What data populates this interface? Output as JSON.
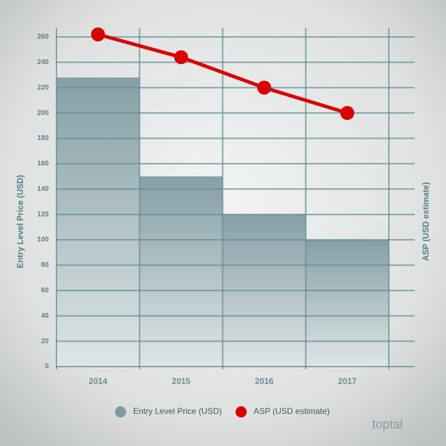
{
  "chart_data": {
    "type": "bar_line",
    "ylabel": "Entry Level Price (USD)",
    "y2label": "ASP (USD estimate)",
    "categories": [
      "2014",
      "2015",
      "2016",
      "2017"
    ],
    "series": [
      {
        "name": "Entry Level Price (USD)",
        "type": "bar",
        "color": "#7d9ba3",
        "values": [
          228,
          150,
          120,
          100
        ]
      },
      {
        "name": "ASP (USD estimate)",
        "type": "line",
        "color": "#d90000",
        "values": [
          262,
          244,
          220,
          200
        ]
      }
    ],
    "ylim": [
      0,
      260
    ],
    "yticks": [
      0,
      20,
      40,
      60,
      80,
      100,
      120,
      140,
      160,
      180,
      200,
      220,
      240,
      260
    ],
    "grid": true,
    "brand": "toptal"
  }
}
